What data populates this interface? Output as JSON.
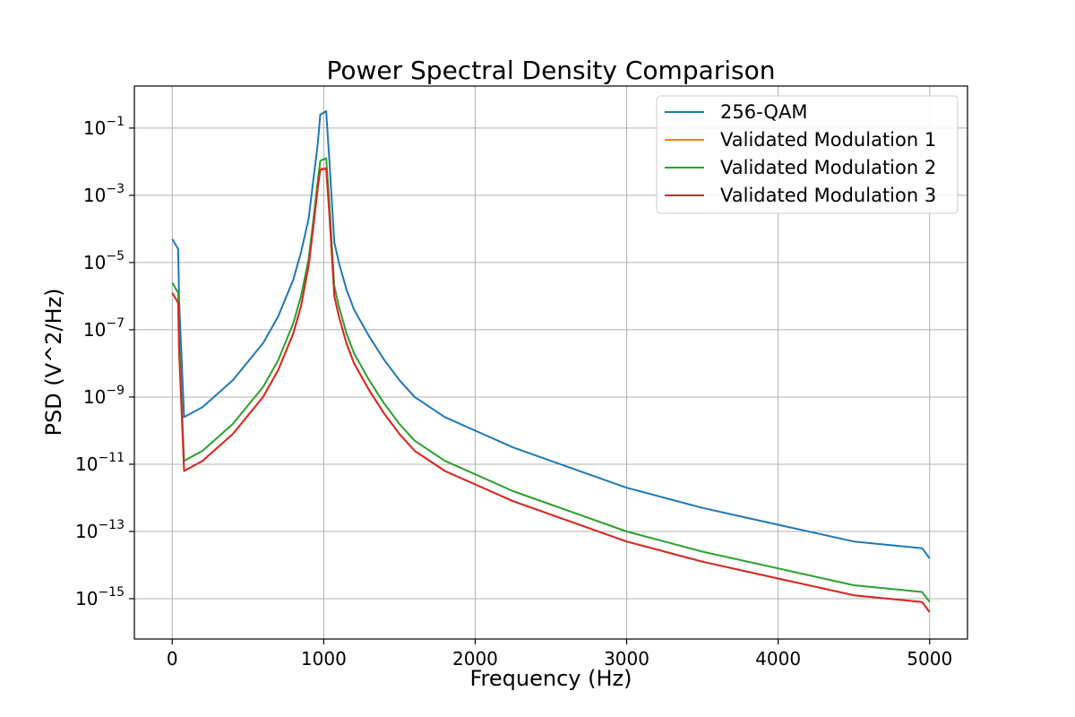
{
  "chart_data": {
    "type": "line",
    "title": "Power Spectral Density Comparison",
    "xlabel": "Frequency (Hz)",
    "ylabel": "PSD (V^2/Hz)",
    "yscale": "log",
    "xlim": [
      -250,
      5250
    ],
    "ylim_log10": [
      -16.2,
      0.25
    ],
    "grid": true,
    "legend_position": "top-right",
    "x_ticks": [
      {
        "value": 0,
        "label": "0"
      },
      {
        "value": 1000,
        "label": "1000"
      },
      {
        "value": 2000,
        "label": "2000"
      },
      {
        "value": 3000,
        "label": "3000"
      },
      {
        "value": 4000,
        "label": "4000"
      },
      {
        "value": 5000,
        "label": "5000"
      }
    ],
    "y_ticks": [
      {
        "exp": -1,
        "base": "10",
        "sup": "−1"
      },
      {
        "exp": -3,
        "base": "10",
        "sup": "−3"
      },
      {
        "exp": -5,
        "base": "10",
        "sup": "−5"
      },
      {
        "exp": -7,
        "base": "10",
        "sup": "−7"
      },
      {
        "exp": -9,
        "base": "10",
        "sup": "−9"
      },
      {
        "exp": -11,
        "base": "10",
        "sup": "−11"
      },
      {
        "exp": -13,
        "base": "10",
        "sup": "−13"
      },
      {
        "exp": -15,
        "base": "10",
        "sup": "−15"
      }
    ],
    "series": [
      {
        "name": "256-QAM",
        "color": "#1f77b4",
        "x": [
          0,
          39,
          45,
          78,
          200,
          400,
          600,
          700,
          800,
          850,
          900,
          930,
          960,
          977,
          1016,
          1035,
          1055,
          1070,
          1100,
          1150,
          1200,
          1300,
          1400,
          1500,
          1600,
          1800,
          2000,
          2250,
          2500,
          3000,
          3500,
          4000,
          4500,
          4950,
          5000
        ],
        "log10_y": [
          -4.3,
          -4.6,
          -6.1,
          -9.6,
          -9.3,
          -8.5,
          -7.4,
          -6.6,
          -5.5,
          -4.7,
          -3.7,
          -2.6,
          -1.5,
          -0.6,
          -0.5,
          -1.8,
          -3.3,
          -4.4,
          -5.0,
          -5.8,
          -6.4,
          -7.2,
          -7.9,
          -8.5,
          -9.0,
          -9.6,
          -10.0,
          -10.5,
          -10.9,
          -11.7,
          -12.3,
          -12.8,
          -13.3,
          -13.5,
          -13.8
        ]
      },
      {
        "name": "Validated Modulation 1",
        "color": "#ff7f0e",
        "x": [
          0,
          39,
          45,
          78,
          200,
          400,
          600,
          700,
          800,
          850,
          900,
          930,
          960,
          977,
          1016,
          1035,
          1055,
          1070,
          1100,
          1150,
          1200,
          1300,
          1400,
          1500,
          1600,
          1800,
          2000,
          2250,
          2500,
          3000,
          3500,
          4000,
          4500,
          4950,
          5000
        ],
        "log10_y": [
          -5.9,
          -6.2,
          -7.6,
          -11.2,
          -10.9,
          -10.1,
          -9.0,
          -8.2,
          -7.1,
          -6.3,
          -5.1,
          -4.0,
          -2.8,
          -2.2,
          -2.2,
          -3.4,
          -4.9,
          -6.0,
          -6.6,
          -7.4,
          -8.0,
          -8.8,
          -9.5,
          -10.1,
          -10.6,
          -11.2,
          -11.6,
          -12.1,
          -12.5,
          -13.3,
          -13.9,
          -14.4,
          -14.9,
          -15.1,
          -15.4
        ]
      },
      {
        "name": "Validated Modulation 2",
        "color": "#2ca02c",
        "x": [
          0,
          39,
          45,
          78,
          200,
          400,
          600,
          700,
          800,
          850,
          900,
          930,
          960,
          977,
          1016,
          1035,
          1055,
          1070,
          1100,
          1150,
          1200,
          1300,
          1400,
          1500,
          1600,
          1800,
          2000,
          2250,
          2500,
          3000,
          3500,
          4000,
          4500,
          4950,
          5000
        ],
        "log10_y": [
          -5.6,
          -5.9,
          -7.3,
          -10.9,
          -10.6,
          -9.8,
          -8.7,
          -7.9,
          -6.8,
          -6.0,
          -4.9,
          -3.8,
          -2.6,
          -1.97,
          -1.9,
          -3.1,
          -4.6,
          -5.7,
          -6.3,
          -7.1,
          -7.7,
          -8.5,
          -9.2,
          -9.8,
          -10.3,
          -10.9,
          -11.3,
          -11.8,
          -12.2,
          -13.0,
          -13.6,
          -14.1,
          -14.6,
          -14.8,
          -15.1
        ]
      },
      {
        "name": "Validated Modulation 3",
        "color": "#d62728",
        "x": [
          0,
          39,
          45,
          78,
          200,
          400,
          600,
          700,
          800,
          850,
          900,
          930,
          960,
          977,
          1016,
          1035,
          1055,
          1070,
          1100,
          1150,
          1200,
          1300,
          1400,
          1500,
          1600,
          1800,
          2000,
          2250,
          2500,
          3000,
          3500,
          4000,
          4500,
          4950,
          5000
        ],
        "log10_y": [
          -5.9,
          -6.2,
          -7.6,
          -11.2,
          -10.9,
          -10.1,
          -9.0,
          -8.2,
          -7.1,
          -6.3,
          -5.1,
          -4.0,
          -2.8,
          -2.25,
          -2.2,
          -3.4,
          -4.9,
          -6.0,
          -6.6,
          -7.4,
          -8.0,
          -8.8,
          -9.5,
          -10.1,
          -10.6,
          -11.2,
          -11.6,
          -12.1,
          -12.5,
          -13.3,
          -13.9,
          -14.4,
          -14.9,
          -15.1,
          -15.4
        ]
      }
    ]
  }
}
